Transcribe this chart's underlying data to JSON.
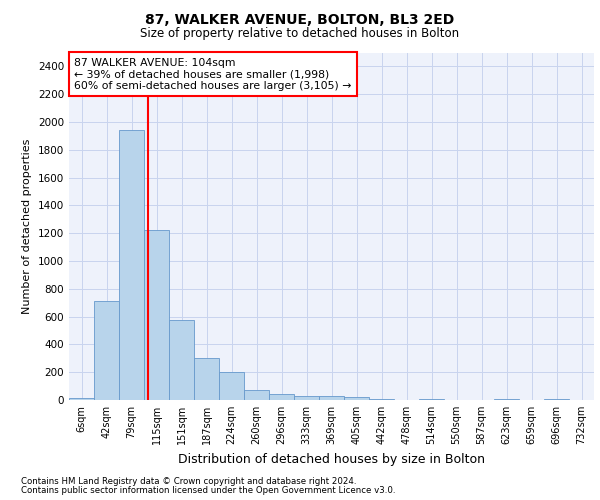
{
  "title1": "87, WALKER AVENUE, BOLTON, BL3 2ED",
  "title2": "Size of property relative to detached houses in Bolton",
  "xlabel": "Distribution of detached houses by size in Bolton",
  "ylabel": "Number of detached properties",
  "bar_labels": [
    "6sqm",
    "42sqm",
    "79sqm",
    "115sqm",
    "151sqm",
    "187sqm",
    "224sqm",
    "260sqm",
    "296sqm",
    "333sqm",
    "369sqm",
    "405sqm",
    "442sqm",
    "478sqm",
    "514sqm",
    "550sqm",
    "587sqm",
    "623sqm",
    "659sqm",
    "696sqm",
    "732sqm"
  ],
  "bar_values": [
    15,
    710,
    1940,
    1225,
    575,
    305,
    205,
    75,
    45,
    30,
    30,
    25,
    5,
    0,
    5,
    0,
    0,
    5,
    0,
    5,
    0
  ],
  "bar_color": "#b8d4eb",
  "bar_edge_color": "#6699cc",
  "annotation_text": "87 WALKER AVENUE: 104sqm\n← 39% of detached houses are smaller (1,998)\n60% of semi-detached houses are larger (3,105) →",
  "property_line_x": 2.67,
  "ylim": [
    0,
    2500
  ],
  "yticks": [
    0,
    200,
    400,
    600,
    800,
    1000,
    1200,
    1400,
    1600,
    1800,
    2000,
    2200,
    2400
  ],
  "footnote1": "Contains HM Land Registry data © Crown copyright and database right 2024.",
  "footnote2": "Contains public sector information licensed under the Open Government Licence v3.0.",
  "bg_color": "#eef2fb",
  "grid_color": "#c8d4ee"
}
